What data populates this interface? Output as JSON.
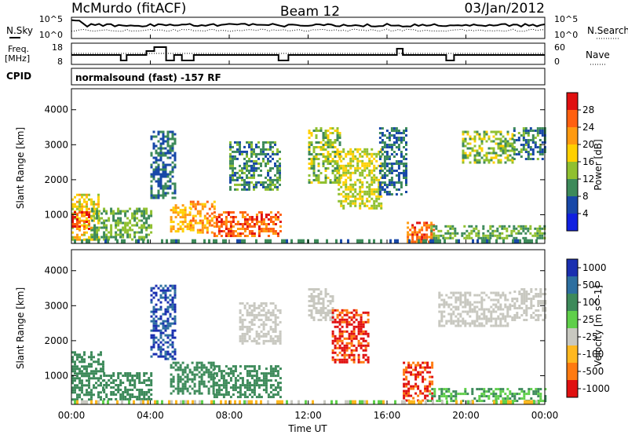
{
  "header": {
    "station": "McMurdo (fitACF)",
    "beam": "Beam 12",
    "date": "03/Jan/2012"
  },
  "side_labels": {
    "nsky": "N.Sky",
    "freq": "Freq.",
    "freq_unit": "[MHz]",
    "cpid": "CPID",
    "nsearch": "N.Search",
    "nave": "Nave"
  },
  "noise_axis": {
    "top": "10^5",
    "bottom": "10^0"
  },
  "freq_axis": {
    "left_top": "18",
    "left_bottom": "8",
    "right_top": "60",
    "right_bottom": "0"
  },
  "cpid_text": "normalsound (fast) -157 RF",
  "x_axis": {
    "label": "Time UT",
    "ticks": [
      "00:00",
      "04:00",
      "08:00",
      "12:00",
      "16:00",
      "20:00",
      "00:00"
    ]
  },
  "y_axis": {
    "label": "Slant Range [km]",
    "ticks": [
      "1000",
      "2000",
      "3000",
      "4000"
    ]
  },
  "power_bar": {
    "label": "Power [dB]",
    "ticks": [
      "4",
      "8",
      "12",
      "16",
      "20",
      "24",
      "28"
    ],
    "colors": [
      "#1020e0",
      "#1848a8",
      "#3d8a5a",
      "#90c030",
      "#ffd000",
      "#ff9a10",
      "#ff6010",
      "#e01010"
    ]
  },
  "velocity_bar": {
    "label": "Velocity [m s^-1]",
    "ticks": [
      "1000",
      "500",
      "100",
      "25",
      "-25",
      "-100",
      "-500",
      "-1000"
    ],
    "colors": [
      "#1a2fb0",
      "#2d6fa0",
      "#3d8a5a",
      "#5fcf4a",
      "#c8c8c0",
      "#ffb820",
      "#ff7a10",
      "#e01010"
    ]
  },
  "chart_data": {
    "type": "heatmap",
    "title": "McMurdo (fitACF)",
    "xlabel": "Time UT",
    "ylabel": "Slant Range [km]",
    "xlim": [
      "00:00",
      "24:00"
    ],
    "ylim": [
      180,
      4600
    ],
    "panels": [
      {
        "name": "Power [dB]",
        "zlim": [
          0,
          30
        ],
        "patches": [
          {
            "t0": 0.0,
            "t1": 1.4,
            "r0": 300,
            "r1": 1600,
            "v": 18
          },
          {
            "t0": 0.0,
            "t1": 0.9,
            "r0": 600,
            "r1": 1100,
            "v": 27
          },
          {
            "t0": 1.0,
            "t1": 4.0,
            "r0": 300,
            "r1": 1200,
            "v": 12
          },
          {
            "t0": 4.0,
            "t1": 5.2,
            "r0": 1500,
            "r1": 3400,
            "v": 8
          },
          {
            "t0": 5.0,
            "t1": 6.0,
            "r0": 500,
            "r1": 1300,
            "v": 20
          },
          {
            "t0": 6.0,
            "t1": 7.2,
            "r0": 500,
            "r1": 1400,
            "v": 22
          },
          {
            "t0": 7.2,
            "t1": 10.6,
            "r0": 400,
            "r1": 1100,
            "v": 26
          },
          {
            "t0": 8.0,
            "t1": 10.6,
            "r0": 1700,
            "r1": 3100,
            "v": 10
          },
          {
            "t0": 12.0,
            "t1": 13.6,
            "r0": 1900,
            "r1": 3500,
            "v": 14
          },
          {
            "t0": 13.5,
            "t1": 15.7,
            "r0": 1200,
            "r1": 2900,
            "v": 16
          },
          {
            "t0": 15.6,
            "t1": 17.0,
            "r0": 1600,
            "r1": 3500,
            "v": 8
          },
          {
            "t0": 17.0,
            "t1": 18.4,
            "r0": 250,
            "r1": 800,
            "v": 26
          },
          {
            "t0": 18.2,
            "t1": 24.0,
            "r0": 300,
            "r1": 700,
            "v": 12
          },
          {
            "t0": 19.8,
            "t1": 22.4,
            "r0": 2500,
            "r1": 3400,
            "v": 14
          },
          {
            "t0": 22.4,
            "t1": 24.0,
            "r0": 2600,
            "r1": 3500,
            "v": 9
          }
        ]
      },
      {
        "name": "Velocity [m s-1]",
        "zlim": [
          -1000,
          1000
        ],
        "patches": [
          {
            "t0": 0.0,
            "t1": 1.6,
            "r0": 300,
            "r1": 1700,
            "v": 150
          },
          {
            "t0": 1.6,
            "t1": 4.0,
            "r0": 300,
            "r1": 1100,
            "v": 120
          },
          {
            "t0": 4.0,
            "t1": 5.2,
            "r0": 1500,
            "r1": 3600,
            "v": 800
          },
          {
            "t0": 5.0,
            "t1": 7.2,
            "r0": 500,
            "r1": 1400,
            "v": 180
          },
          {
            "t0": 7.2,
            "t1": 10.6,
            "r0": 400,
            "r1": 1300,
            "v": 160
          },
          {
            "t0": 8.5,
            "t1": 10.6,
            "r0": 1900,
            "r1": 3100,
            "v": 0
          },
          {
            "t0": 12.0,
            "t1": 13.2,
            "r0": 2600,
            "r1": 3500,
            "v": 0
          },
          {
            "t0": 13.2,
            "t1": 15.0,
            "r0": 1400,
            "r1": 2900,
            "v": -350
          },
          {
            "t0": 16.8,
            "t1": 18.3,
            "r0": 300,
            "r1": 1400,
            "v": -300
          },
          {
            "t0": 18.0,
            "t1": 24.0,
            "r0": 250,
            "r1": 650,
            "v": 60
          },
          {
            "t0": 18.6,
            "t1": 22.2,
            "r0": 2400,
            "r1": 3400,
            "v": 0
          },
          {
            "t0": 22.3,
            "t1": 24.0,
            "r0": 2600,
            "r1": 3500,
            "v": 0
          }
        ]
      }
    ]
  }
}
